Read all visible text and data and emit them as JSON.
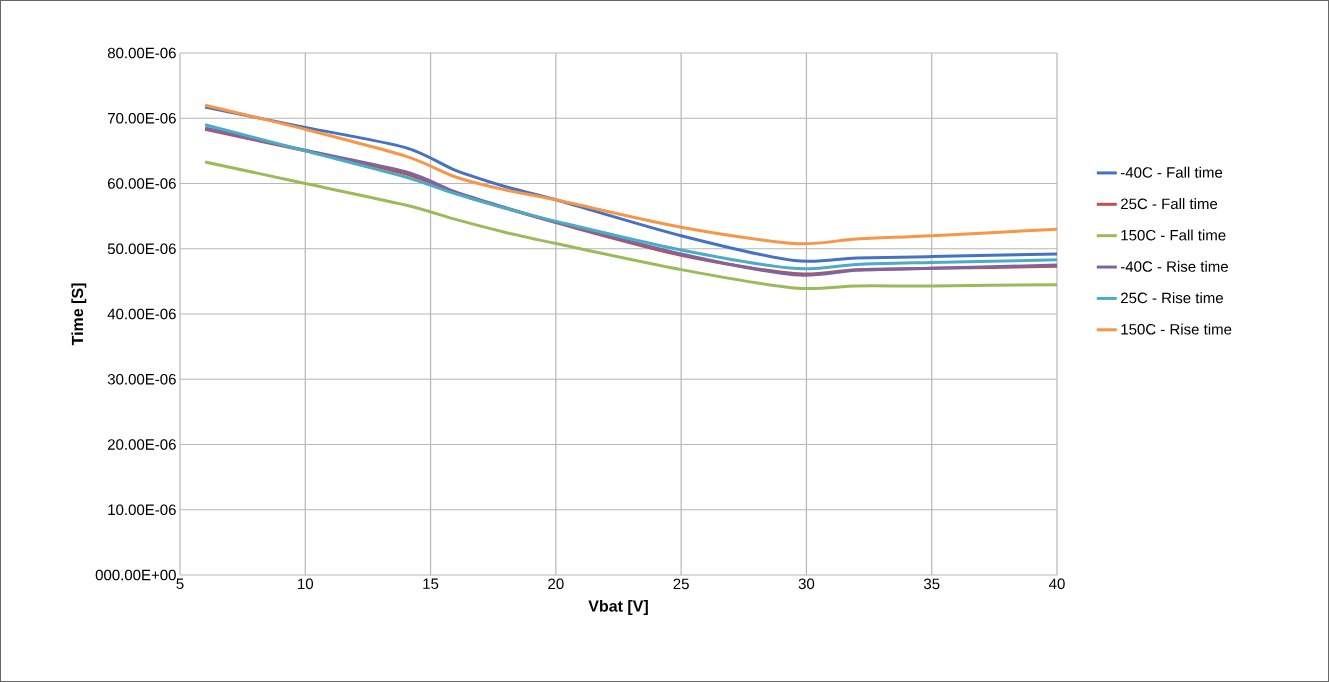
{
  "chart_data": {
    "type": "line",
    "xlabel": "Vbat [V]",
    "ylabel": "Time [S]",
    "x": [
      6,
      10,
      14,
      16,
      18,
      20,
      25,
      29.5,
      32,
      35,
      40
    ],
    "series": [
      {
        "name": "-40C - Fall time",
        "color": "#4472c4",
        "values": [
          7.17e-05,
          6.86e-05,
          6.55e-05,
          6.2e-05,
          5.95e-05,
          5.75e-05,
          5.2e-05,
          4.82e-05,
          4.86e-05,
          4.88e-05,
          4.92e-05
        ]
      },
      {
        "name": "25C - Fall time",
        "color": "#c0504d",
        "values": [
          6.83e-05,
          6.5e-05,
          6.15e-05,
          5.85e-05,
          5.62e-05,
          5.4e-05,
          4.9e-05,
          4.62e-05,
          4.68e-05,
          4.7e-05,
          4.73e-05
        ]
      },
      {
        "name": "150C - Fall time",
        "color": "#9bbb59",
        "values": [
          6.33e-05,
          6e-05,
          5.67e-05,
          5.45e-05,
          5.25e-05,
          5.08e-05,
          4.68e-05,
          4.4e-05,
          4.43e-05,
          4.43e-05,
          4.45e-05
        ]
      },
      {
        "name": "-40C - Rise time",
        "color": "#8064a2",
        "values": [
          6.85e-05,
          6.51e-05,
          6.18e-05,
          5.87e-05,
          5.63e-05,
          5.41e-05,
          4.92e-05,
          4.6e-05,
          4.67e-05,
          4.7e-05,
          4.75e-05
        ]
      },
      {
        "name": "25C - Rise time",
        "color": "#4bacc6",
        "values": [
          6.9e-05,
          6.5e-05,
          6.1e-05,
          5.84e-05,
          5.62e-05,
          5.42e-05,
          4.98e-05,
          4.7e-05,
          4.76e-05,
          4.79e-05,
          4.83e-05
        ]
      },
      {
        "name": "150C - Rise time",
        "color": "#f79646",
        "values": [
          7.2e-05,
          6.83e-05,
          6.42e-05,
          6.1e-05,
          5.9e-05,
          5.75e-05,
          5.33e-05,
          5.08e-05,
          5.15e-05,
          5.2e-05,
          5.3e-05
        ]
      }
    ],
    "xlim": [
      5,
      40
    ],
    "xticks": [
      5,
      10,
      15,
      20,
      25,
      30,
      35,
      40
    ],
    "ylim": [
      0,
      8e-05
    ],
    "yticks": [
      {
        "value": 0,
        "label": "000.00E+00"
      },
      {
        "value": 1e-05,
        "label": "10.00E-06"
      },
      {
        "value": 2e-05,
        "label": "20.00E-06"
      },
      {
        "value": 3e-05,
        "label": "30.00E-06"
      },
      {
        "value": 4e-05,
        "label": "40.00E-06"
      },
      {
        "value": 5e-05,
        "label": "50.00E-06"
      },
      {
        "value": 6e-05,
        "label": "60.00E-06"
      },
      {
        "value": 7e-05,
        "label": "70.00E-06"
      },
      {
        "value": 8e-05,
        "label": "80.00E-06"
      }
    ],
    "grid": true,
    "legend": "right",
    "marker": "none"
  }
}
